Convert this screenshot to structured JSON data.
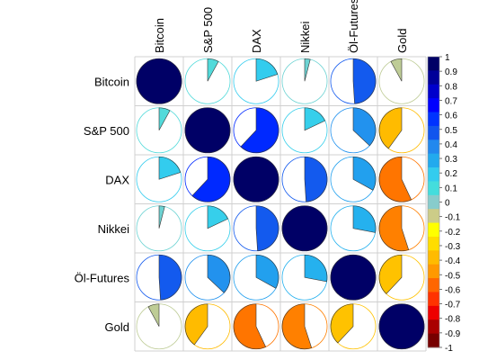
{
  "chart_data": {
    "type": "correlation-pie-matrix",
    "variables": [
      "Bitcoin",
      "S&P 500",
      "DAX",
      "Nikkei",
      "Öl-Futures",
      "Gold"
    ],
    "matrix": [
      [
        1.0,
        0.08,
        0.2,
        0.04,
        0.49,
        -0.08
      ],
      [
        0.08,
        1.0,
        0.62,
        0.18,
        0.37,
        -0.4
      ],
      [
        0.2,
        0.62,
        1.0,
        0.49,
        0.33,
        -0.57
      ],
      [
        0.04,
        0.18,
        0.49,
        1.0,
        0.28,
        -0.55
      ],
      [
        0.49,
        0.37,
        0.33,
        0.28,
        1.0,
        -0.38
      ],
      [
        -0.08,
        -0.4,
        -0.57,
        -0.55,
        -0.38,
        1.0
      ]
    ],
    "colorbar": {
      "range": [
        -1,
        1
      ],
      "tick_labels": [
        "1",
        "0.9",
        "0.8",
        "0.7",
        "0.6",
        "0.5",
        "0.4",
        "0.3",
        "0.2",
        "0.1",
        "0",
        "-0.1",
        "-0.2",
        "-0.3",
        "-0.4",
        "-0.5",
        "-0.6",
        "-0.7",
        "-0.8",
        "-0.9",
        "-1"
      ],
      "colors": [
        "#000066",
        "#000099",
        "#0000cc",
        "#0000ff",
        "#0033ff",
        "#1155ee",
        "#2288ee",
        "#22aaee",
        "#33ccee",
        "#44dddd",
        "#88cccc",
        "#cccc88",
        "#ffff00",
        "#ffdd00",
        "#ffbb00",
        "#ff9900",
        "#ff6600",
        "#ff3300",
        "#ee0000",
        "#aa0000",
        "#770000"
      ]
    }
  }
}
